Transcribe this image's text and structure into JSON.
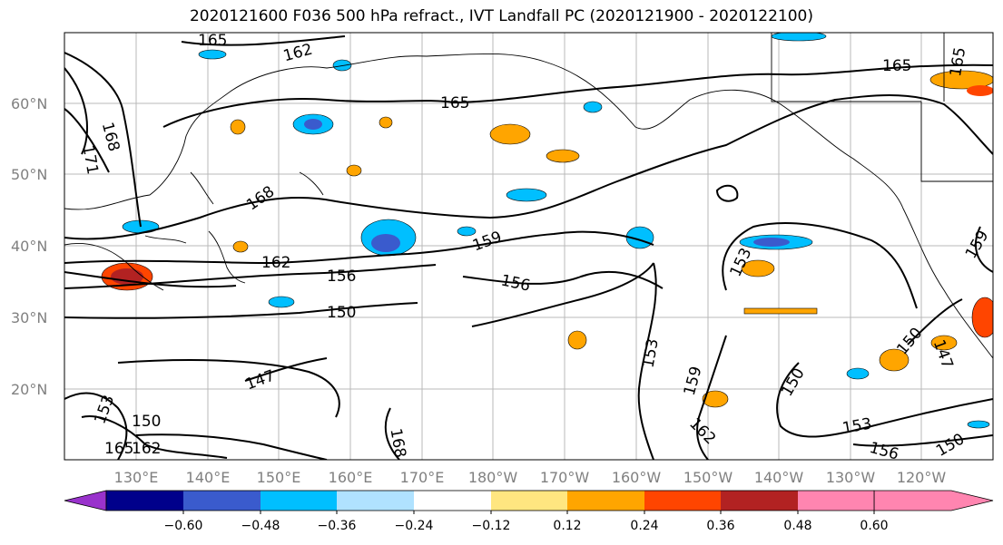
{
  "title": "2020121600 F036 500 hPa refract., IVT Landfall PC (2020121900 - 2020122100)",
  "map": {
    "lat_labels": [
      "60°N",
      "50°N",
      "40°N",
      "30°N",
      "20°N"
    ],
    "lon_labels": [
      "130°E",
      "140°E",
      "150°E",
      "160°E",
      "170°E",
      "180°W",
      "170°W",
      "160°W",
      "150°W",
      "140°W",
      "130°W",
      "120°W"
    ],
    "contour_labels": [
      "165",
      "162",
      "165",
      "168",
      "171",
      "168",
      "162",
      "159",
      "156",
      "156",
      "150",
      "147",
      "153",
      "153",
      "150",
      "159",
      "162",
      "150",
      "153",
      "156",
      "150",
      "147",
      "165",
      "159",
      "165",
      "153",
      "162",
      "150",
      "165",
      "168"
    ],
    "colors": {
      "contour": "#000000",
      "coast": "#000000",
      "grid": "#b0b0b0"
    }
  },
  "colorbar": {
    "ticks": [
      "−0.60",
      "−0.48",
      "−0.36",
      "−0.24",
      "−0.12",
      "0.12",
      "0.24",
      "0.36",
      "0.48",
      "0.60"
    ],
    "colors": [
      "#9932cc",
      "#00008b",
      "#3a5bcd",
      "#00bfff",
      "#b0e2ff",
      "#ffffff",
      "#ffe680",
      "#ffa500",
      "#ff4500",
      "#b22222",
      "#ff85b0"
    ]
  }
}
